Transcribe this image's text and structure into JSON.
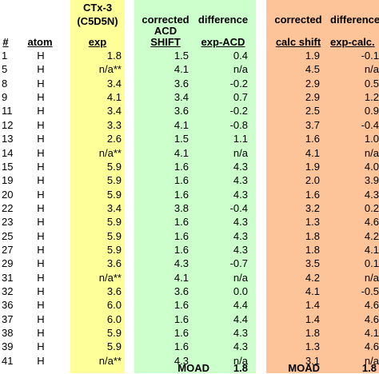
{
  "headers": {
    "ctx_line1": "CTx-3",
    "ctx_line2": "(C5D5N)",
    "num": "#",
    "atom": "atom",
    "exp": "exp",
    "corr_acd_line1": "corrected",
    "corr_acd_line2": "ACD",
    "corr_acd_line3": "SHIFT",
    "diff_acd_line1": "difference",
    "diff_acd_line2": "exp-ACD",
    "corr_calc_line1": "corrected",
    "corr_calc_line2": "calc shift",
    "diff_calc_line1": "difference",
    "diff_calc_line2": "exp-calc."
  },
  "rows": [
    {
      "num": "1",
      "atom": "H",
      "exp": "1.8",
      "acd": "1.5",
      "diff_acd": "0.4",
      "calc": "1.9",
      "diff_calc": "-0.1"
    },
    {
      "num": "5",
      "atom": "H",
      "exp": "n/a**",
      "acd": "4.1",
      "diff_acd": "n/a",
      "calc": "4.5",
      "diff_calc": "n/a"
    },
    {
      "num": "8",
      "atom": "H",
      "exp": "3.4",
      "acd": "3.6",
      "diff_acd": "-0.2",
      "calc": "2.9",
      "diff_calc": "0.5"
    },
    {
      "num": "9",
      "atom": "H",
      "exp": "4.1",
      "acd": "3.4",
      "diff_acd": "0.7",
      "calc": "2.9",
      "diff_calc": "1.2"
    },
    {
      "num": "11",
      "atom": "H",
      "exp": "3.4",
      "acd": "3.6",
      "diff_acd": "-0.2",
      "calc": "2.5",
      "diff_calc": "0.9"
    },
    {
      "num": "12",
      "atom": "H",
      "exp": "3.3",
      "acd": "4.1",
      "diff_acd": "-0.8",
      "calc": "3.7",
      "diff_calc": "-0.4"
    },
    {
      "num": "13",
      "atom": "H",
      "exp": "2.6",
      "acd": "1.5",
      "diff_acd": "1.1",
      "calc": "1.6",
      "diff_calc": "1.0"
    },
    {
      "num": "14",
      "atom": "H",
      "exp": "n/a**",
      "acd": "4.1",
      "diff_acd": "n/a",
      "calc": "4.1",
      "diff_calc": "n/a"
    },
    {
      "num": "15",
      "atom": "H",
      "exp": "5.9",
      "acd": "1.6",
      "diff_acd": "4.3",
      "calc": "1.9",
      "diff_calc": "4.0"
    },
    {
      "num": "19",
      "atom": "H",
      "exp": "5.9",
      "acd": "1.6",
      "diff_acd": "4.3",
      "calc": "2.0",
      "diff_calc": "3.9"
    },
    {
      "num": "20",
      "atom": "H",
      "exp": "5.9",
      "acd": "1.6",
      "diff_acd": "4.3",
      "calc": "1.6",
      "diff_calc": "4.3"
    },
    {
      "num": "22",
      "atom": "H",
      "exp": "3.4",
      "acd": "3.8",
      "diff_acd": "-0.4",
      "calc": "3.2",
      "diff_calc": "0.2"
    },
    {
      "num": "23",
      "atom": "H",
      "exp": "5.9",
      "acd": "1.6",
      "diff_acd": "4.3",
      "calc": "1.3",
      "diff_calc": "4.6"
    },
    {
      "num": "25",
      "atom": "H",
      "exp": "5.9",
      "acd": "1.6",
      "diff_acd": "4.3",
      "calc": "1.8",
      "diff_calc": "4.2"
    },
    {
      "num": "27",
      "atom": "H",
      "exp": "5.9",
      "acd": "1.6",
      "diff_acd": "4.3",
      "calc": "1.8",
      "diff_calc": "4.1"
    },
    {
      "num": "29",
      "atom": "H",
      "exp": "3.6",
      "acd": "4.3",
      "diff_acd": "-0.7",
      "calc": "3.5",
      "diff_calc": "0.1"
    },
    {
      "num": "31",
      "atom": "H",
      "exp": "n/a**",
      "acd": "4.1",
      "diff_acd": "n/a",
      "calc": "4.2",
      "diff_calc": "n/a"
    },
    {
      "num": "32",
      "atom": "H",
      "exp": "3.6",
      "acd": "3.6",
      "diff_acd": "0.0",
      "calc": "4.1",
      "diff_calc": "-0.5"
    },
    {
      "num": "36",
      "atom": "H",
      "exp": "6.0",
      "acd": "1.6",
      "diff_acd": "4.4",
      "calc": "1.4",
      "diff_calc": "4.6"
    },
    {
      "num": "37",
      "atom": "H",
      "exp": "6.0",
      "acd": "1.6",
      "diff_acd": "4.4",
      "calc": "1.4",
      "diff_calc": "4.6"
    },
    {
      "num": "38",
      "atom": "H",
      "exp": "5.9",
      "acd": "1.6",
      "diff_acd": "4.3",
      "calc": "1.8",
      "diff_calc": "4.1"
    },
    {
      "num": "39",
      "atom": "H",
      "exp": "5.9",
      "acd": "1.6",
      "diff_acd": "4.3",
      "calc": "1.3",
      "diff_calc": "4.6"
    },
    {
      "num": "41",
      "atom": "H",
      "exp": "n/a**",
      "acd": "4.3",
      "diff_acd": "n/a",
      "calc": "3.1",
      "diff_calc": "n/a"
    }
  ],
  "summary": {
    "moad_label_acd": "MOAD",
    "moad_value_acd": "1.8",
    "moad_label_calc": "MOAD",
    "moad_value_calc": "1.8"
  },
  "colors": {
    "exp_band": "#ffff99",
    "acd_band": "#ccffcc",
    "calc_band": "#fdc49a"
  }
}
